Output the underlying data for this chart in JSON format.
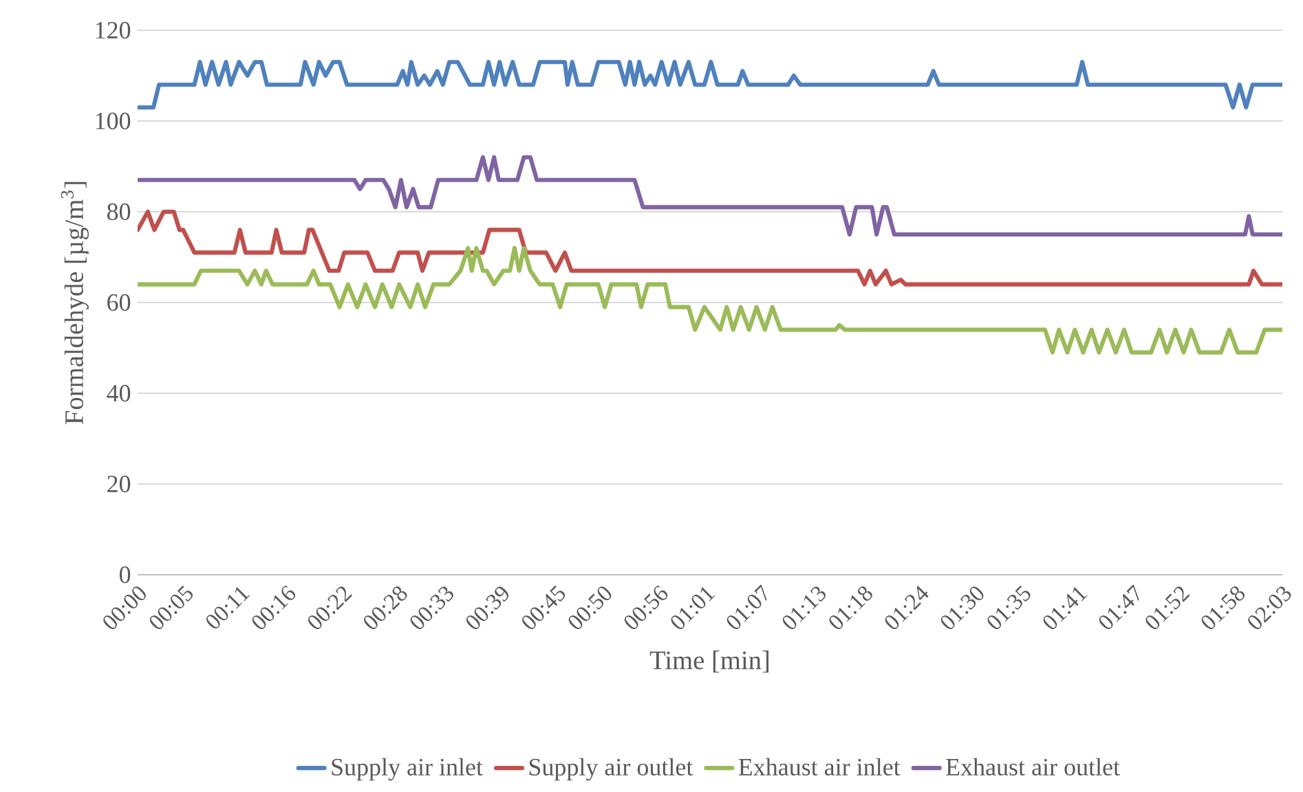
{
  "chart_data": {
    "type": "line",
    "xlabel": "Time [min]",
    "ylabel": "Formaldehyde [µg/m$^{3}$]",
    "xlim": [
      0,
      123
    ],
    "ylim": [
      0,
      120
    ],
    "yticks": [
      0,
      20,
      40,
      60,
      80,
      100,
      120
    ],
    "xticks": [
      {
        "value": 0,
        "label": "00:00"
      },
      {
        "value": 5,
        "label": "00:05"
      },
      {
        "value": 11,
        "label": "00:11"
      },
      {
        "value": 16,
        "label": "00:16"
      },
      {
        "value": 22,
        "label": "00:22"
      },
      {
        "value": 28,
        "label": "00:28"
      },
      {
        "value": 33,
        "label": "00:33"
      },
      {
        "value": 39,
        "label": "00:39"
      },
      {
        "value": 45,
        "label": "00:45"
      },
      {
        "value": 50,
        "label": "00:50"
      },
      {
        "value": 56,
        "label": "00:56"
      },
      {
        "value": 61,
        "label": "01:01"
      },
      {
        "value": 67,
        "label": "01:07"
      },
      {
        "value": 73,
        "label": "01:13"
      },
      {
        "value": 78,
        "label": "01:18"
      },
      {
        "value": 84,
        "label": "01:24"
      },
      {
        "value": 90,
        "label": "01:30"
      },
      {
        "value": 95,
        "label": "01:35"
      },
      {
        "value": 101,
        "label": "01:41"
      },
      {
        "value": 107,
        "label": "01:47"
      },
      {
        "value": 112,
        "label": "01:52"
      },
      {
        "value": 118,
        "label": "01:58"
      },
      {
        "value": 123,
        "label": "02:03"
      }
    ],
    "grid": "y",
    "legend": "bottom",
    "marker": "none",
    "line_style": "solid",
    "series": [
      {
        "name": "Supply air inlet",
        "color": "#4f81bd",
        "x": [
          0,
          1.7,
          2.3,
          6.1,
          6.7,
          7.3,
          8.0,
          8.7,
          9.5,
          10.0,
          10.9,
          11.8,
          12.6,
          13.3,
          13.9,
          17.5,
          18.0,
          18.9,
          19.5,
          20.2,
          21.0,
          21.7,
          22.5,
          27.9,
          28.5,
          29.0,
          29.4,
          30.1,
          30.8,
          31.4,
          32.2,
          32.8,
          33.5,
          34.4,
          35.7,
          37.1,
          37.7,
          38.3,
          38.9,
          39.5,
          40.3,
          41.0,
          42.5,
          43.2,
          45.9,
          46.2,
          46.7,
          47.3,
          48.8,
          49.5,
          51.7,
          52.4,
          52.9,
          53.4,
          53.9,
          54.5,
          55.1,
          55.6,
          56.3,
          57.0,
          57.7,
          58.3,
          59.2,
          59.9,
          60.9,
          61.6,
          62.3,
          64.5,
          65.0,
          65.6,
          69.9,
          70.5,
          71.2,
          84.9,
          85.5,
          86.1,
          100.9,
          101.5,
          102.1,
          116.9,
          117.7,
          118.4,
          119.1,
          119.8,
          123
        ],
        "values": [
          103,
          103,
          108,
          108,
          113,
          108,
          113,
          108,
          113,
          108,
          113,
          110,
          113,
          113,
          108,
          108,
          113,
          108,
          113,
          110,
          113,
          113,
          108,
          108,
          111,
          108,
          113,
          108,
          110,
          108,
          111,
          108,
          113,
          113,
          108,
          108,
          113,
          108,
          113,
          108,
          113,
          108,
          108,
          113,
          113,
          108,
          113,
          108,
          108,
          113,
          113,
          108,
          113,
          108,
          113,
          108,
          110,
          108,
          113,
          108,
          113,
          108,
          113,
          108,
          108,
          113,
          108,
          108,
          111,
          108,
          108,
          110,
          108,
          108,
          111,
          108,
          108,
          113,
          108,
          108,
          103,
          108,
          103,
          108,
          108
        ]
      },
      {
        "name": "Supply air outlet",
        "color": "#c0504d",
        "x": [
          0,
          1.1,
          1.8,
          2.8,
          3.9,
          4.5,
          4.9,
          6.1,
          10.4,
          11.0,
          11.6,
          14.4,
          14.9,
          15.5,
          17.9,
          18.4,
          18.8,
          20.6,
          21.6,
          22.2,
          24.7,
          25.5,
          27.4,
          28.1,
          30.1,
          30.6,
          31.3,
          33.5,
          37.1,
          37.8,
          41.0,
          41.7,
          43.9,
          44.9,
          45.9,
          46.6,
          77.4,
          78.1,
          78.7,
          79.3,
          80.4,
          81.0,
          82.0,
          82.5,
          119.4,
          119.9,
          120.8,
          123
        ],
        "values": [
          76,
          80,
          76,
          80,
          80,
          76,
          76,
          71,
          71,
          76,
          71,
          71,
          76,
          71,
          71,
          76,
          76,
          67,
          67,
          71,
          71,
          67,
          67,
          71,
          71,
          67,
          71,
          71,
          71,
          76,
          76,
          71,
          71,
          67,
          71,
          67,
          67,
          64,
          67,
          64,
          67,
          64,
          65,
          64,
          64,
          67,
          64,
          64
        ]
      },
      {
        "name": "Exhaust air inlet",
        "color": "#9bbb59",
        "x": [
          0,
          6.1,
          6.8,
          10.9,
          11.8,
          12.6,
          13.3,
          13.8,
          14.5,
          18.2,
          18.9,
          19.5,
          20.7,
          21.7,
          22.6,
          23.6,
          24.5,
          25.5,
          26.3,
          27.3,
          28.1,
          29.3,
          30.1,
          30.9,
          31.8,
          33.5,
          34.7,
          35.5,
          35.9,
          36.4,
          37.1,
          37.5,
          38.3,
          39.3,
          40.0,
          40.5,
          41.0,
          41.5,
          42.2,
          43.2,
          44.6,
          45.4,
          46.1,
          49.5,
          50.2,
          50.9,
          53.6,
          54.1,
          54.8,
          56.7,
          57.2,
          59.2,
          59.9,
          60.9,
          62.6,
          63.3,
          64.0,
          64.8,
          65.7,
          66.5,
          67.4,
          68.2,
          69.1,
          75.0,
          75.4,
          76.0,
          97.5,
          98.3,
          99.0,
          99.9,
          100.7,
          101.6,
          102.5,
          103.3,
          104.2,
          105.1,
          106.0,
          106.8,
          108.9,
          109.8,
          110.6,
          111.5,
          112.4,
          113.2,
          114.1,
          116.4,
          117.3,
          118.2,
          120.2,
          121.1,
          123
        ],
        "values": [
          64,
          64,
          67,
          67,
          64,
          67,
          64,
          67,
          64,
          64,
          67,
          64,
          64,
          59,
          64,
          59,
          64,
          59,
          64,
          59,
          64,
          59,
          64,
          59,
          64,
          64,
          67,
          72,
          67,
          72,
          67,
          67,
          64,
          67,
          67,
          72,
          67,
          72,
          67,
          64,
          64,
          59,
          64,
          64,
          59,
          64,
          64,
          59,
          64,
          64,
          59,
          59,
          54,
          59,
          54,
          59,
          54,
          59,
          54,
          59,
          54,
          59,
          54,
          54,
          55,
          54,
          54,
          49,
          54,
          49,
          54,
          49,
          54,
          49,
          54,
          49,
          54,
          49,
          49,
          54,
          49,
          54,
          49,
          54,
          49,
          49,
          54,
          49,
          49,
          54,
          54
        ]
      },
      {
        "name": "Exhaust air outlet",
        "color": "#8064a2",
        "x": [
          0,
          23.3,
          23.9,
          24.5,
          26.4,
          27.0,
          27.7,
          28.3,
          28.9,
          29.6,
          30.2,
          31.5,
          32.3,
          36.4,
          37.1,
          37.7,
          38.3,
          38.8,
          40.8,
          41.5,
          42.2,
          42.9,
          53.4,
          54.3,
          75.7,
          76.5,
          77.2,
          78.9,
          79.4,
          80.1,
          80.5,
          81.3,
          119.0,
          119.4,
          119.8,
          123
        ],
        "values": [
          87,
          87,
          85,
          87,
          87,
          85,
          81,
          87,
          81,
          85,
          81,
          81,
          87,
          87,
          92,
          87,
          92,
          87,
          87,
          92,
          92,
          87,
          87,
          81,
          81,
          75,
          81,
          81,
          75,
          81,
          81,
          75,
          75,
          79,
          75,
          75
        ]
      }
    ]
  }
}
